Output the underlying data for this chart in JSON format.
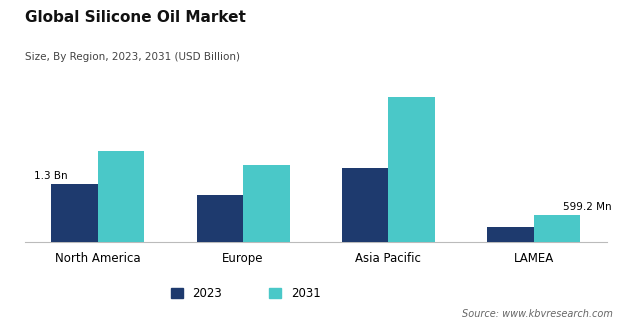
{
  "title": "Global Silicone Oil Market",
  "subtitle": "Size, By Region, 2023, 2031 (USD Billion)",
  "categories": [
    "North America",
    "Europe",
    "Asia Pacific",
    "LAMEA"
  ],
  "values_2023": [
    1.3,
    1.05,
    1.65,
    0.32
  ],
  "values_2031": [
    2.05,
    1.72,
    3.25,
    0.5992
  ],
  "color_2023": "#1e3a6e",
  "color_2031": "#4ac8c8",
  "bar_width": 0.32,
  "annotations": [
    {
      "text": "1.3 Bn",
      "bar": 0,
      "series": 0
    },
    {
      "text": "599.2 Mn",
      "bar": 3,
      "series": 1
    }
  ],
  "legend_labels": [
    "2023",
    "2031"
  ],
  "source_text": "Source: www.kbvresearch.com",
  "background_color": "#ffffff",
  "ylim": [
    0,
    3.7
  ]
}
